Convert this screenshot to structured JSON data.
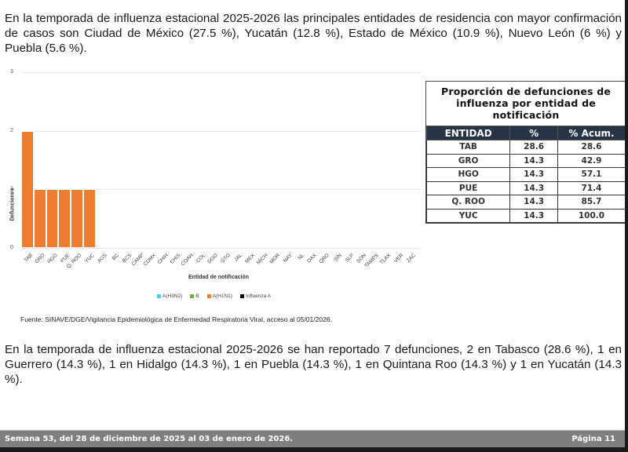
{
  "intro_paragraph": "En la temporada de influenza estacional 2025-2026 las principales entidades de residencia con mayor confirmación de casos son Ciudad de México (27.5 %), Yucatán (12.8 %), Estado de México (10.9 %), Nuevo León (6 %) y Puebla (5.6 %).",
  "chart_data": {
    "type": "bar",
    "title": "",
    "xlabel": "Entidad de notificación",
    "ylabel": "Defunciones",
    "ylim": [
      0,
      3
    ],
    "yticks": [
      "0",
      "1",
      "2",
      "3"
    ],
    "grid": true,
    "legend_position": "bottom",
    "legend": [
      {
        "name": "A(H3N2)",
        "color": "#4dd0e1"
      },
      {
        "name": "B",
        "color": "#70ad47"
      },
      {
        "name": "A(H1N1)",
        "color": "#ed7d31"
      },
      {
        "name": "Influenza A",
        "color": "#000000"
      }
    ],
    "categories": [
      "TAB",
      "GRO",
      "HGO",
      "PUE",
      "Q. ROO",
      "YUC",
      "AGS",
      "BC",
      "BCS",
      "CAMP",
      "CDMX",
      "CHIH",
      "CHIS",
      "COAH",
      "COL",
      "DGO",
      "GTO",
      "JAL",
      "MEX",
      "MICH",
      "MOR",
      "NAY",
      "NL",
      "OAX",
      "QRO",
      "SIN",
      "SLP",
      "SON",
      "TAMPS",
      "TLAX",
      "VER",
      "ZAC"
    ],
    "series": [
      {
        "name": "A(H3N2)",
        "values": [
          0,
          0,
          0,
          0,
          0,
          0,
          0,
          0,
          0,
          0,
          0,
          0,
          0,
          0,
          0,
          0,
          0,
          0,
          0,
          0,
          0,
          0,
          0,
          0,
          0,
          0,
          0,
          0,
          0,
          0,
          0,
          0
        ]
      },
      {
        "name": "B",
        "values": [
          0,
          0,
          0,
          0,
          0,
          0,
          0,
          0,
          0,
          0,
          0,
          0,
          0,
          0,
          0,
          0,
          0,
          0,
          0,
          0,
          0,
          0,
          0,
          0,
          0,
          0,
          0,
          0,
          0,
          0,
          0,
          0
        ]
      },
      {
        "name": "A(H1N1)",
        "values": [
          2,
          1,
          1,
          1,
          1,
          1,
          0,
          0,
          0,
          0,
          0,
          0,
          0,
          0,
          0,
          0,
          0,
          0,
          0,
          0,
          0,
          0,
          0,
          0,
          0,
          0,
          0,
          0,
          0,
          0,
          0,
          0
        ]
      },
      {
        "name": "Influenza A",
        "values": [
          0,
          0,
          0,
          0,
          0,
          0,
          0,
          0,
          0,
          0,
          0,
          0,
          0,
          0,
          0,
          0,
          0,
          0,
          0,
          0,
          0,
          0,
          0,
          0,
          0,
          0,
          0,
          0,
          0,
          0,
          0,
          0
        ]
      }
    ]
  },
  "source": "Fuente: SINAVE/DGE/Vigilancia Epidemiológica de Enfermedad Respiratoria Viral, acceso al 05/01/2026.",
  "table": {
    "title": "Proporción de defunciones de influenza por entidad de notificación",
    "headers": [
      "ENTIDAD",
      "%",
      "% Acum."
    ],
    "rows": [
      [
        "TAB",
        "28.6",
        "28.6"
      ],
      [
        "GRO",
        "14.3",
        "42.9"
      ],
      [
        "HGO",
        "14.3",
        "57.1"
      ],
      [
        "PUE",
        "14.3",
        "71.4"
      ],
      [
        "Q. ROO",
        "14.3",
        "85.7"
      ],
      [
        "YUC",
        "14.3",
        "100.0"
      ]
    ],
    "header_bg": "#263445"
  },
  "deaths_paragraph": "En la temporada de influenza estacional 2025-2026 se han reportado 7 defunciones, 2 en Tabasco (28.6 %), 1 en Guerrero (14.3 %), 1 en Hidalgo (14.3 %), 1 en Puebla (14.3 %), 1 en Quintana Roo (14.3 %) y 1 en Yucatán (14.3 %).",
  "footer": {
    "week": "Semana 53, del 28 de diciembre de 2025 al 03 de enero de 2026.",
    "page": "Página 11"
  }
}
